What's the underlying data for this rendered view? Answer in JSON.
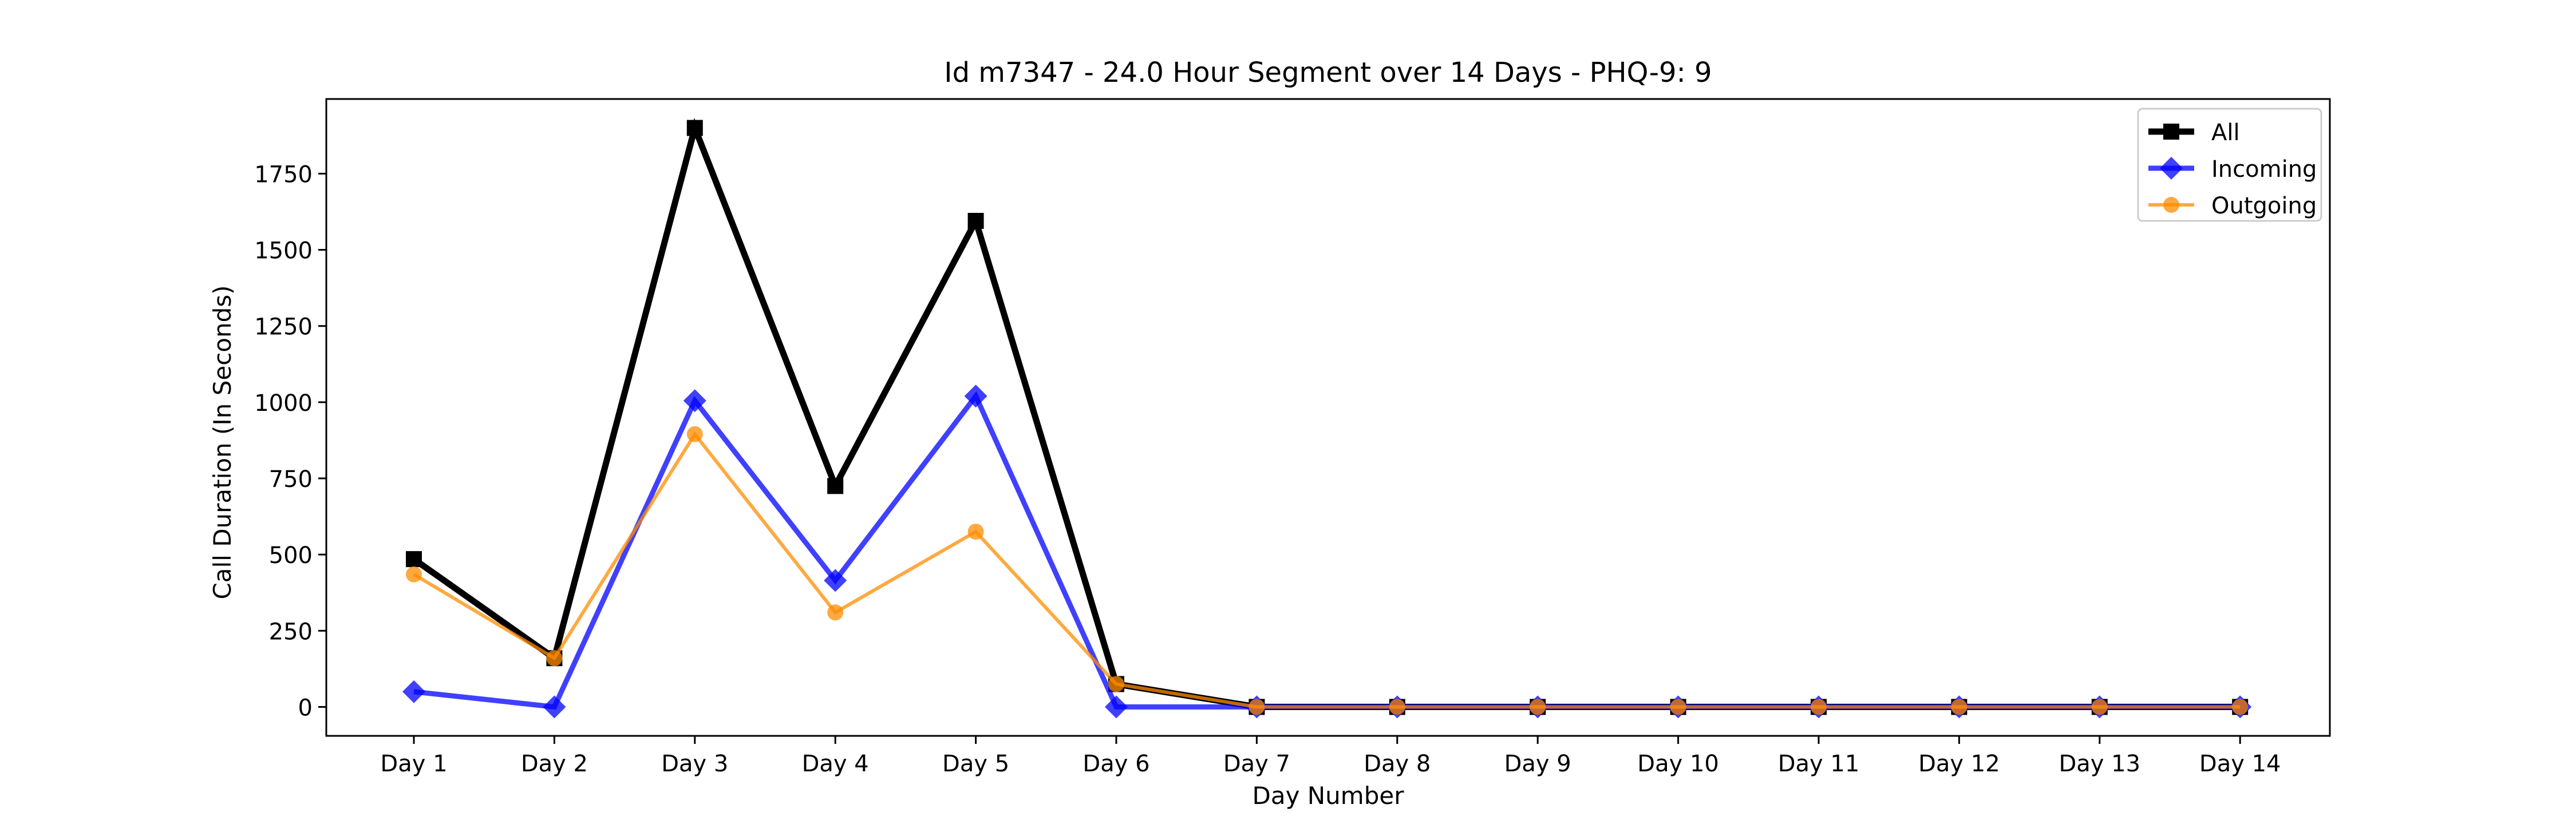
{
  "chart_data": {
    "type": "line",
    "title": "Id m7347 - 24.0 Hour Segment over 14 Days - PHQ-9: 9",
    "xlabel": "Day Number",
    "ylabel": "Call Duration (In Seconds)",
    "categories": [
      "Day 1",
      "Day 2",
      "Day 3",
      "Day 4",
      "Day 5",
      "Day 6",
      "Day 7",
      "Day 8",
      "Day 9",
      "Day 10",
      "Day 11",
      "Day 12",
      "Day 13",
      "Day 14"
    ],
    "yticks": [
      0,
      250,
      500,
      750,
      1000,
      1250,
      1500,
      1750
    ],
    "ylim": [
      -95,
      1995
    ],
    "grid": false,
    "legend_position": "upper right",
    "series": [
      {
        "name": "All",
        "color": "#000000",
        "marker": "square",
        "values": [
          485,
          160,
          1900,
          725,
          1595,
          75,
          0,
          0,
          0,
          0,
          0,
          0,
          0,
          0
        ]
      },
      {
        "name": "Incoming",
        "color": "#0000ff",
        "marker": "diamond",
        "values": [
          50,
          0,
          1005,
          415,
          1020,
          0,
          0,
          0,
          0,
          0,
          0,
          0,
          0,
          0
        ]
      },
      {
        "name": "Outgoing",
        "color": "#ff8c00",
        "marker": "circle",
        "values": [
          435,
          160,
          895,
          310,
          575,
          75,
          0,
          0,
          0,
          0,
          0,
          0,
          0,
          0
        ]
      }
    ]
  }
}
